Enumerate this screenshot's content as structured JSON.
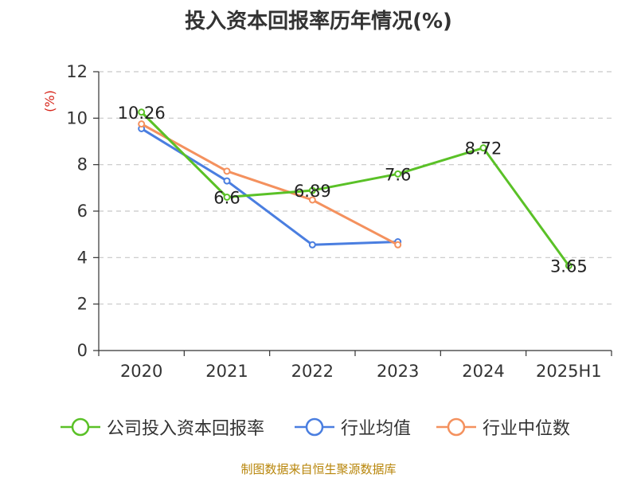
{
  "title": "投入资本回报率历年情况(%)",
  "source": "制图数据来自恒生聚源数据库",
  "colors": {
    "company": "#5ac127",
    "industry_avg": "#4a7ee0",
    "industry_median": "#f4915e",
    "axis": "#333333",
    "unit_label": "#d7261b",
    "grid": "#c8c8c8"
  },
  "chart_data": {
    "type": "line",
    "title": "投入资本回报率历年情况(%)",
    "ylabel": "(%)",
    "xlabel": "",
    "categories": [
      "2020",
      "2021",
      "2022",
      "2023",
      "2024",
      "2025H1"
    ],
    "ylim": [
      0,
      12
    ],
    "yticks": [
      0,
      2,
      4,
      6,
      8,
      10,
      12
    ],
    "grid": true,
    "legend_position": "bottom",
    "series": [
      {
        "name": "公司投入资本回报率",
        "color": "#5ac127",
        "show_labels": true,
        "values": [
          10.26,
          6.6,
          6.89,
          7.6,
          8.72,
          3.65
        ]
      },
      {
        "name": "行业均值",
        "color": "#4a7ee0",
        "show_labels": false,
        "values": [
          9.55,
          7.3,
          4.55,
          4.68,
          null,
          null
        ]
      },
      {
        "name": "行业中位数",
        "color": "#f4915e",
        "show_labels": false,
        "values": [
          9.75,
          7.72,
          6.48,
          4.55,
          null,
          null
        ]
      }
    ]
  }
}
